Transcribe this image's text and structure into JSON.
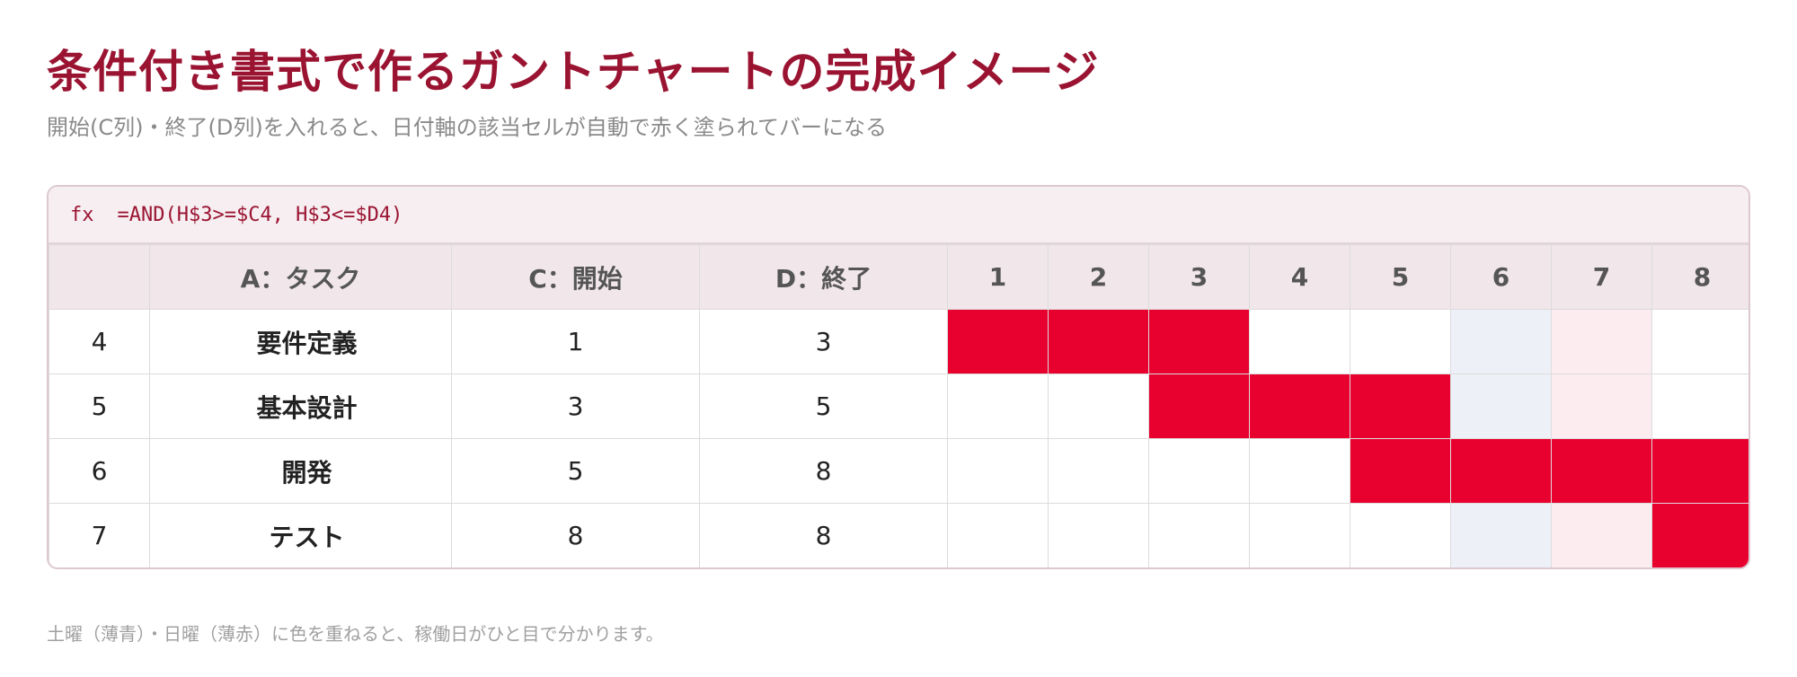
{
  "page": {
    "title": "条件付き書式で作るガントチャートの完成イメージ",
    "subtitle": "開始(C列)・終了(D列)を入れると、日付軸の該当セルが自動で赤く塗られてバーになる",
    "footnote": "土曜（薄青）・日曜（薄赤）に色を重ねると、稼働日がひと目で分かります。"
  },
  "formula_bar": {
    "fx_label": "fx",
    "formula": "=AND(H$3>=$C4, H$3<=$D4)"
  },
  "colors": {
    "bar": "#e8002e",
    "saturday": "#eef0f8",
    "sunday": "#fcecef",
    "accent": "#9a1432"
  },
  "table": {
    "headers": {
      "row_number": "",
      "task": "A：タスク",
      "start": "C：開始",
      "end": "D：終了"
    },
    "days": [
      "1",
      "2",
      "3",
      "4",
      "5",
      "6",
      "7",
      "8"
    ],
    "day_types": [
      "",
      "",
      "",
      "",
      "",
      "saturday",
      "sunday",
      ""
    ],
    "rows": [
      {
        "row": "4",
        "task": "要件定義",
        "start": "1",
        "end": "3"
      },
      {
        "row": "5",
        "task": "基本設計",
        "start": "3",
        "end": "5"
      },
      {
        "row": "6",
        "task": "開発",
        "start": "5",
        "end": "8"
      },
      {
        "row": "7",
        "task": "テスト",
        "start": "8",
        "end": "8"
      }
    ]
  }
}
